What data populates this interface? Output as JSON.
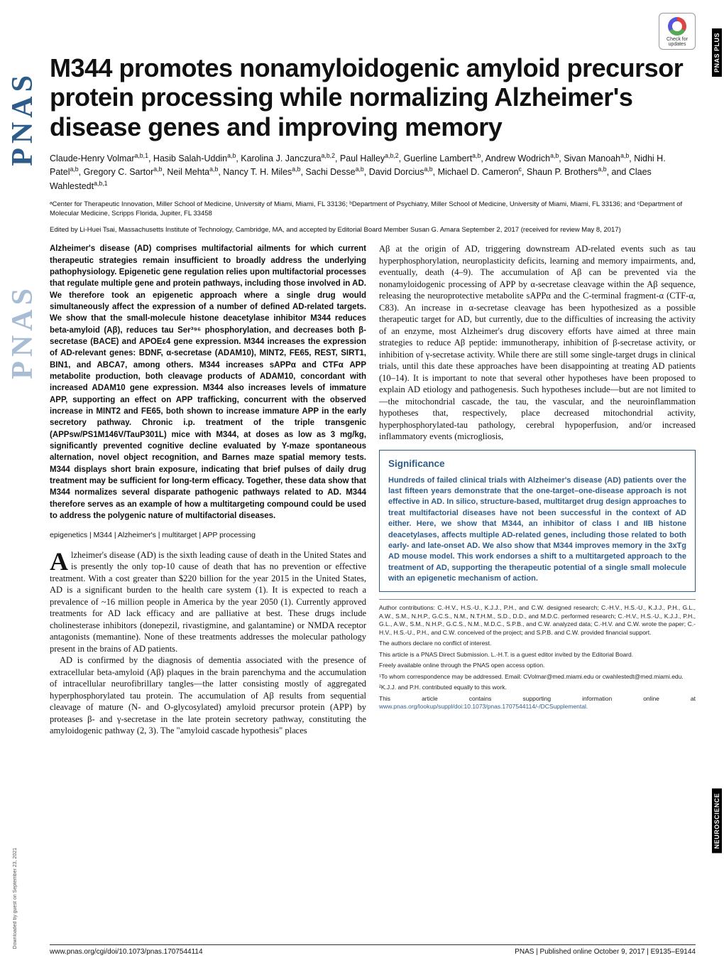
{
  "journal": {
    "side_logo_1": "PNAS",
    "side_logo_2": "PNAS",
    "right_tag_1": "PNAS PLUS",
    "right_tag_2": "NEUROSCIENCE",
    "check_updates_label": "Check for updates"
  },
  "title": "M344 promotes nonamyloidogenic amyloid precursor protein processing while normalizing Alzheimer's disease genes and improving memory",
  "authors_html": "Claude-Henry Volmar<sup>a,b,1</sup>, Hasib Salah-Uddin<sup>a,b</sup>, Karolina J. Janczura<sup>a,b,2</sup>, Paul Halley<sup>a,b,2</sup>, Guerline Lambert<sup>a,b</sup>, Andrew Wodrich<sup>a,b</sup>, Sivan Manoah<sup>a,b</sup>, Nidhi H. Patel<sup>a,b</sup>, Gregory C. Sartor<sup>a,b</sup>, Neil Mehta<sup>a,b</sup>, Nancy T. H. Miles<sup>a,b</sup>, Sachi Desse<sup>a,b</sup>, David Dorcius<sup>a,b</sup>, Michael D. Cameron<sup>c</sup>, Shaun P. Brothers<sup>a,b</sup>, and Claes Wahlestedt<sup>a,b,1</sup>",
  "affiliations": "ᵃCenter for Therapeutic Innovation, Miller School of Medicine, University of Miami, Miami, FL 33136; ᵇDepartment of Psychiatry, Miller School of Medicine, University of Miami, Miami, FL 33136; and ᶜDepartment of Molecular Medicine, Scripps Florida, Jupiter, FL 33458",
  "edited_by": "Edited by Li-Huei Tsai, Massachusetts Institute of Technology, Cambridge, MA, and accepted by Editorial Board Member Susan G. Amara September 2, 2017 (received for review May 8, 2017)",
  "abstract": "Alzheimer's disease (AD) comprises multifactorial ailments for which current therapeutic strategies remain insufficient to broadly address the underlying pathophysiology. Epigenetic gene regulation relies upon multifactorial processes that regulate multiple gene and protein pathways, including those involved in AD. We therefore took an epigenetic approach where a single drug would simultaneously affect the expression of a number of defined AD-related targets. We show that the small-molecule histone deacetylase inhibitor M344 reduces beta-amyloid (Aβ), reduces tau Ser³⁹⁶ phosphorylation, and decreases both β-secretase (BACE) and APOEε4 gene expression. M344 increases the expression of AD-relevant genes: BDNF, α-secretase (ADAM10), MINT2, FE65, REST, SIRT1, BIN1, and ABCA7, among others. M344 increases sAPPα and CTFα APP metabolite production, both cleavage products of ADAM10, concordant with increased ADAM10 gene expression. M344 also increases levels of immature APP, supporting an effect on APP trafficking, concurrent with the observed increase in MINT2 and FE65, both shown to increase immature APP in the early secretory pathway. Chronic i.p. treatment of the triple transgenic (APPsw/PS1M146V/TauP301L) mice with M344, at doses as low as 3 mg/kg, significantly prevented cognitive decline evaluated by Y-maze spontaneous alternation, novel object recognition, and Barnes maze spatial memory tests. M344 displays short brain exposure, indicating that brief pulses of daily drug treatment may be sufficient for long-term efficacy. Together, these data show that M344 normalizes several disparate pathogenic pathways related to AD. M344 therefore serves as an example of how a multitargeting compound could be used to address the polygenic nature of multifactorial diseases.",
  "keywords": "epigenetics | M344 | Alzheimer's | multitarget | APP processing",
  "intro_p1": "lzheimer's disease (AD) is the sixth leading cause of death in the United States and is presently the only top-10 cause of death that has no prevention or effective treatment. With a cost greater than $220 billion for the year 2015 in the United States, AD is a significant burden to the health care system (1). It is expected to reach a prevalence of ~16 million people in America by the year 2050 (1). Currently approved treatments for AD lack efficacy and are palliative at best. These drugs include cholinesterase inhibitors (donepezil, rivastigmine, and galantamine) or NMDA receptor antagonists (memantine). None of these treatments addresses the molecular pathology present in the brains of AD patients.",
  "intro_p2": "AD is confirmed by the diagnosis of dementia associated with the presence of extracellular beta-amyloid (Aβ) plaques in the brain parenchyma and the accumulation of intracellular neurofibrillary tangles—the latter consisting mostly of aggregated hyperphosphorylated tau protein. The accumulation of Aβ results from sequential cleavage of mature (N- and O-glycosylated) amyloid precursor protein (APP) by proteases β- and γ-secretase in the late protein secretory pathway, constituting the amyloidogenic pathway (2, 3). The \"amyloid cascade hypothesis\" places",
  "col2_p1": "Aβ at the origin of AD, triggering downstream AD-related events such as tau hyperphosphorylation, neuroplasticity deficits, learning and memory impairments, and, eventually, death (4–9). The accumulation of Aβ can be prevented via the nonamyloidogenic processing of APP by α-secretase cleavage within the Aβ sequence, releasing the neuroprotective metabolite sAPPα and the C-terminal fragment-α (CTF-α, C83). An increase in α-secretase cleavage has been hypothesized as a possible therapeutic target for AD, but currently, due to the difficulties of increasing the activity of an enzyme, most Alzheimer's drug discovery efforts have aimed at three main strategies to reduce Aβ peptide: immunotherapy, inhibition of β-secretase activity, or inhibition of γ-secretase activity. While there are still some single-target drugs in clinical trials, until this date these approaches have been disappointing at treating AD patients (10–14). It is important to note that several other hypotheses have been proposed to explain AD etiology and pathogenesis. Such hypotheses include—but are not limited to—the mitochondrial cascade, the tau, the vascular, and the neuroinflammation hypotheses that, respectively, place decreased mitochondrial activity, hyperphosphorylated-tau pathology, cerebral hypoperfusion, and/or increased inflammatory events (microgliosis,",
  "significance": {
    "title": "Significance",
    "body": "Hundreds of failed clinical trials with Alzheimer's disease (AD) patients over the last fifteen years demonstrate that the one-target–one-disease approach is not effective in AD. In silico, structure-based, multitarget drug design approaches to treat multifactorial diseases have not been successful in the context of AD either. Here, we show that M344, an inhibitor of class I and IIB histone deacetylases, affects multiple AD-related genes, including those related to both early- and late-onset AD. We also show that M344 improves memory in the 3xTg AD mouse model. This work endorses a shift to a multitargeted approach to the treatment of AD, supporting the therapeutic potential of a single small molecule with an epigenetic mechanism of action."
  },
  "contributions": {
    "author_contrib": "Author contributions: C.-H.V., H.S.-U., K.J.J., P.H., and C.W. designed research; C.-H.V., H.S.-U., K.J.J., P.H., G.L., A.W., S.M., N.H.P., G.C.S., N.M., N.T.H.M., S.D., D.D., and M.D.C. performed research; C.-H.V., H.S.-U., K.J.J., P.H., G.L., A.W., S.M., N.H.P., G.C.S., N.M., M.D.C., S.P.B., and C.W. analyzed data; C.-H.V. and C.W. wrote the paper; C.-H.V., H.S.-U., P.H., and C.W. conceived of the project; and S.P.B. and C.W. provided financial support.",
    "conflict": "The authors declare no conflict of interest.",
    "submission": "This article is a PNAS Direct Submission. L.-H.T. is a guest editor invited by the Editorial Board.",
    "open_access": "Freely available online through the PNAS open access option.",
    "correspond": "¹To whom correspondence may be addressed. Email: CVolmar@med.miami.edu or cwahlestedt@med.miami.edu.",
    "equal": "²K.J.J. and P.H. contributed equally to this work.",
    "supp": "This article contains supporting information online at ",
    "supp_link": "www.pnas.org/lookup/suppl/doi:10.1073/pnas.1707544114/-/DCSupplemental."
  },
  "footer": {
    "doi": "www.pnas.org/cgi/doi/10.1073/pnas.1707544114",
    "right": "PNAS | Published online October 9, 2017 | E9135–E9144"
  },
  "download_note": "Downloaded by guest on September 23, 2021",
  "colors": {
    "pnas_blue": "#2e5c8a",
    "pnas_light": "#a8bdd4",
    "black": "#000000",
    "text": "#111111"
  }
}
